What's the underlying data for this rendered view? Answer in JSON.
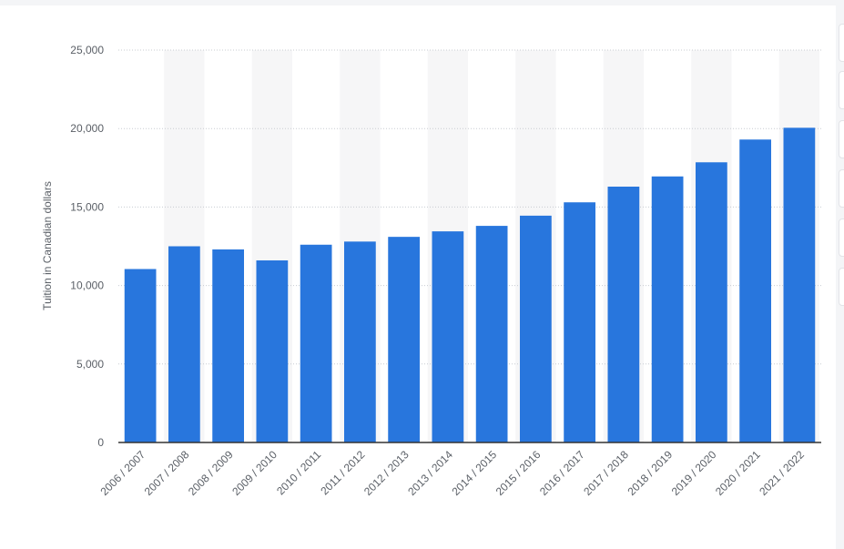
{
  "chart_data": {
    "type": "bar",
    "y_label": "Tuition in Canadian dollars",
    "categories": [
      "2006 / 2007",
      "2007 / 2008",
      "2008 / 2009",
      "2009 / 2010",
      "2010 / 2011",
      "2011 / 2012",
      "2012 / 2013",
      "2013 / 2014",
      "2014 / 2015",
      "2015 / 2016",
      "2016 / 2017",
      "2017 / 2018",
      "2018 / 2019",
      "2019 / 2020",
      "2020 / 2021",
      "2021 / 2022"
    ],
    "values": [
      11050,
      12500,
      12300,
      11600,
      12600,
      12800,
      13100,
      13450,
      13800,
      14450,
      15300,
      16300,
      16950,
      17850,
      19300,
      20050
    ],
    "color": "#2876dd",
    "ylim": [
      0,
      25000
    ],
    "yticks": [
      0,
      {
        "value": 5000,
        "label": "5,000"
      },
      {
        "value": 10000,
        "label": "10,000"
      },
      {
        "value": 15000,
        "label": "15,000"
      },
      {
        "value": 20000,
        "label": "20,000"
      },
      {
        "value": 25000,
        "label": "25,000"
      }
    ],
    "grid": true
  }
}
